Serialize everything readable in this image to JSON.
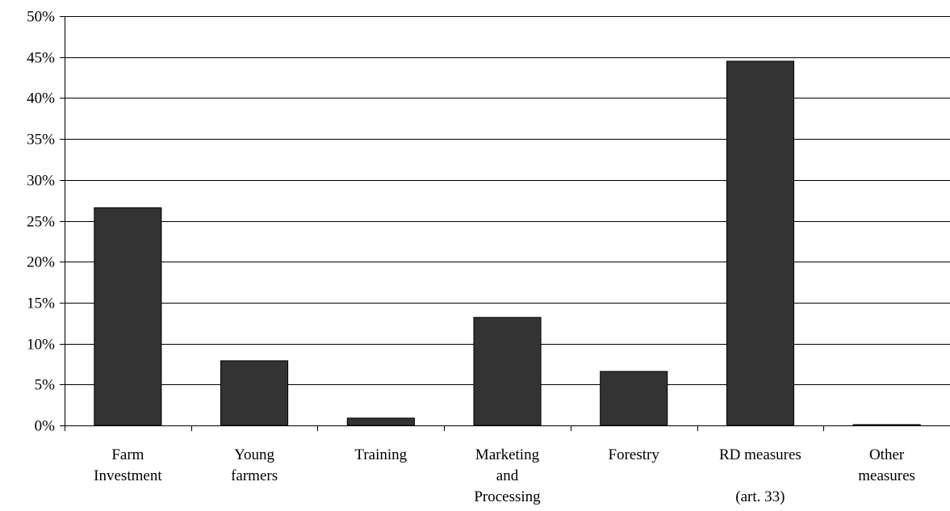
{
  "chart_data": {
    "type": "bar",
    "title": "",
    "xlabel": "",
    "ylabel": "",
    "ylim": [
      0,
      50
    ],
    "y_tick_format": "percent",
    "y_ticks": [
      0,
      5,
      10,
      15,
      20,
      25,
      30,
      35,
      40,
      45,
      50
    ],
    "y_tick_labels": [
      "0%",
      "5%",
      "10%",
      "15%",
      "20%",
      "25%",
      "30%",
      "35%",
      "40%",
      "45%",
      "50%"
    ],
    "grid": "horizontal",
    "legend": "none",
    "bar_color": "#333333",
    "categories": [
      [
        "Farm",
        "Investment"
      ],
      [
        "Young",
        "farmers"
      ],
      [
        "Training"
      ],
      [
        "Marketing",
        "and",
        "Processing"
      ],
      [
        "Forestry"
      ],
      [
        "RD measures",
        "",
        "(art. 33)"
      ],
      [
        "Other",
        "measures"
      ]
    ],
    "values": [
      26.6,
      7.9,
      0.9,
      13.2,
      6.6,
      44.5,
      0.1
    ]
  }
}
